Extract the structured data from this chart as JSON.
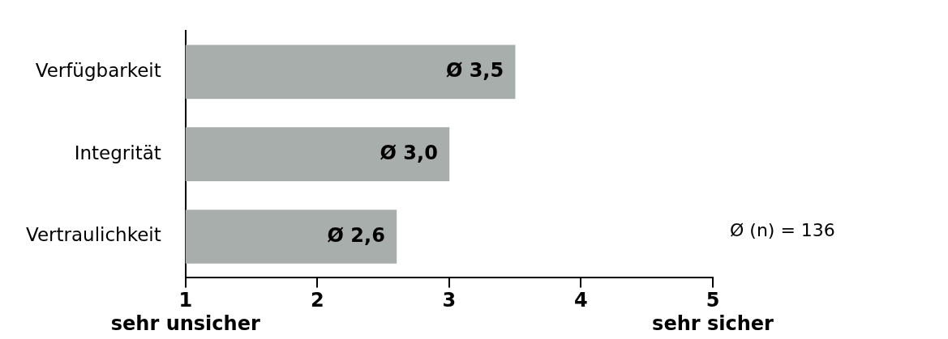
{
  "chart_data": {
    "type": "bar",
    "orientation": "horizontal",
    "categories": [
      "Verfügbarkeit",
      "Integrität",
      "Vertraulichkeit"
    ],
    "values": [
      3.5,
      3.0,
      2.6
    ],
    "color": "#a7aeab",
    "value_labels": [
      "Ø 3,5",
      "Ø 3,0",
      "Ø 2,6"
    ],
    "xlim": [
      1,
      5
    ],
    "xticks": [
      {
        "value": 1,
        "label": "1\nsehr unsicher"
      },
      2,
      3,
      4,
      {
        "value": 5,
        "label": "5\nsehr sicher"
      }
    ],
    "grid": false,
    "legend": false,
    "annotations": [
      "Ø (n) = 136"
    ]
  }
}
